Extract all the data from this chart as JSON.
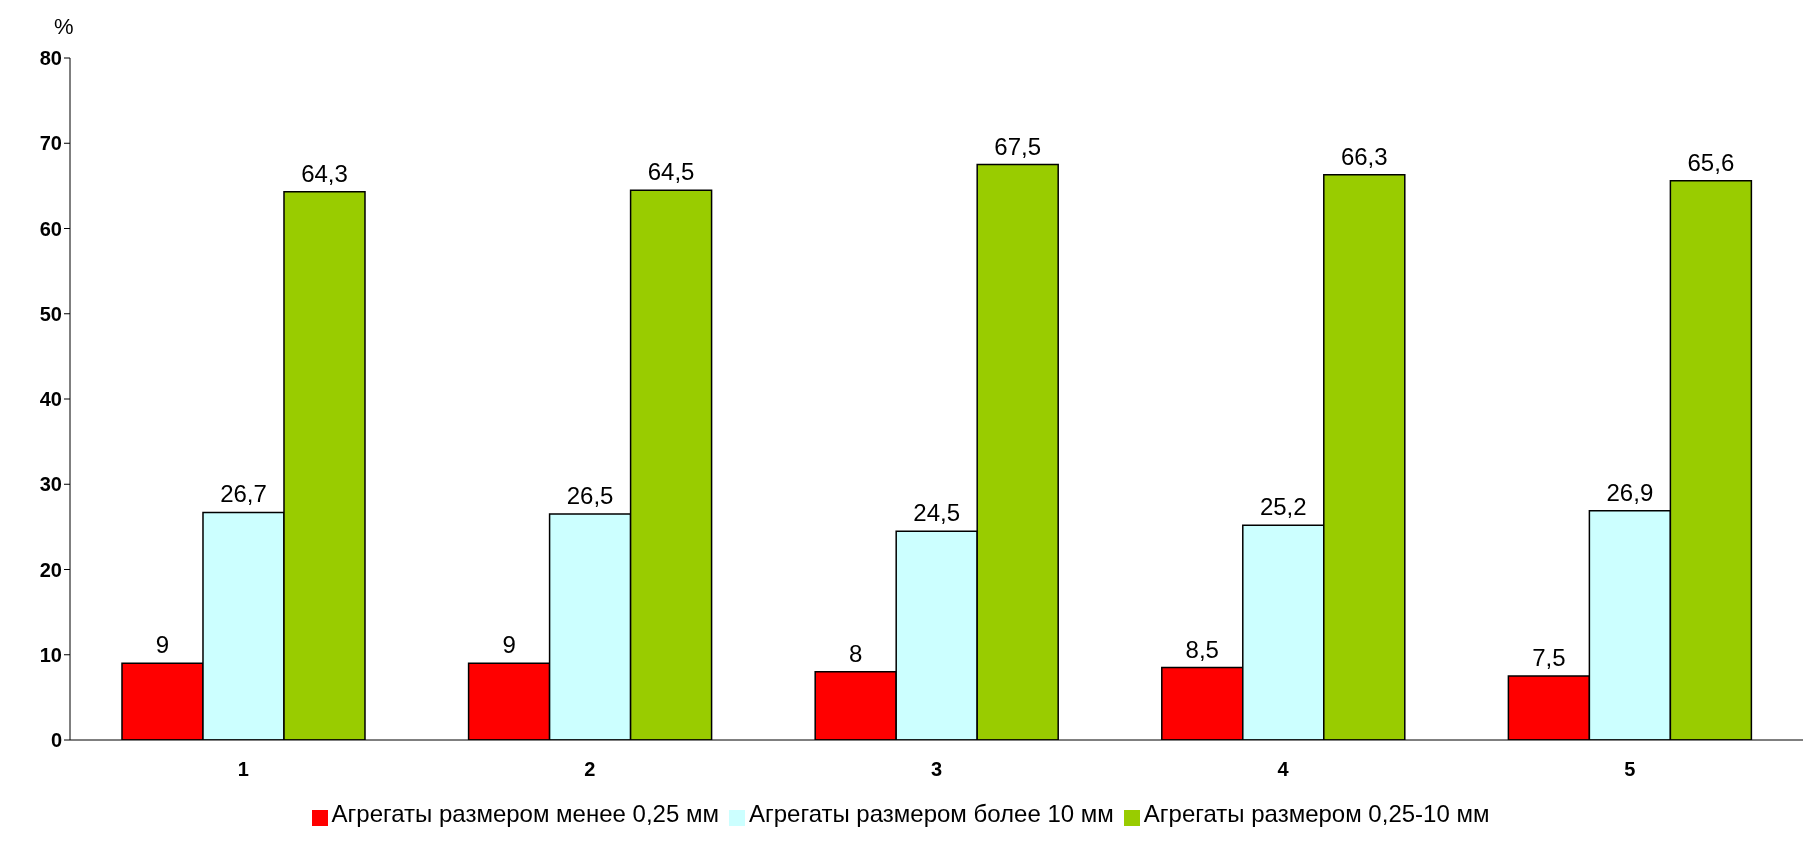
{
  "chart_data": {
    "type": "bar",
    "ylabel": "%",
    "categories": [
      "1",
      "2",
      "3",
      "4",
      "5"
    ],
    "series": [
      {
        "name": "Агрегаты размером менее 0,25 мм",
        "color": "#ff0000",
        "values": [
          9,
          9,
          8,
          8.5,
          7.5
        ],
        "value_labels": [
          "9",
          "9",
          "8",
          "8,5",
          "7,5"
        ]
      },
      {
        "name": "Агрегаты размером более 10 мм",
        "color": "#ccffff",
        "values": [
          26.7,
          26.5,
          24.5,
          25.2,
          26.9
        ],
        "value_labels": [
          "26,7",
          "26,5",
          "24,5",
          "25,2",
          "26,9"
        ]
      },
      {
        "name": "Агрегаты размером 0,25-10 мм",
        "color": "#99cc00",
        "values": [
          64.3,
          64.5,
          67.5,
          66.3,
          65.6
        ],
        "value_labels": [
          "64,3",
          "64,5",
          "67,5",
          "66,3",
          "65,6"
        ]
      }
    ],
    "ylim": [
      0,
      80
    ],
    "yticks": [
      0,
      10,
      20,
      30,
      40,
      50,
      60,
      70,
      80
    ],
    "grid": false,
    "legend": "bottom"
  }
}
